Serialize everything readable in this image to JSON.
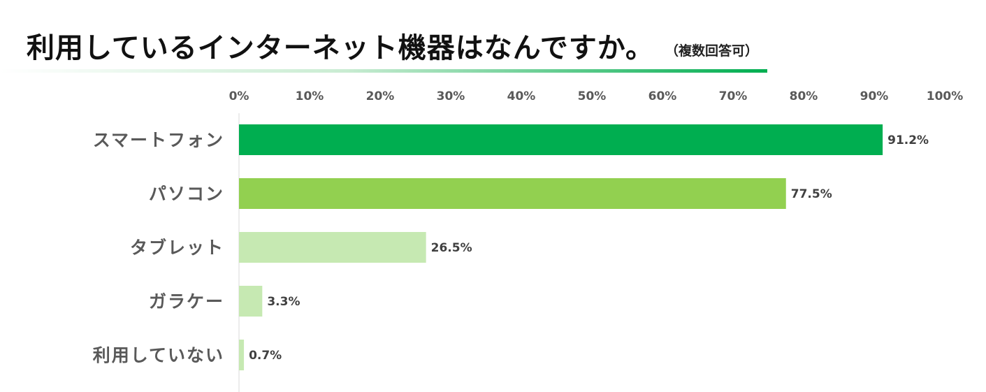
{
  "header": {
    "title": "利用しているインターネット機器はなんですか。",
    "subtitle": "（複数回答可）"
  },
  "colors": {
    "dark_green": "#00ae50",
    "mid_green": "#92d050",
    "light_green": "#c6e9b2",
    "axis_text": "#595959",
    "label_text": "#595959",
    "value_text": "#404040"
  },
  "chart_data": {
    "type": "bar",
    "orientation": "horizontal",
    "title": "利用しているインターネット機器はなんですか。",
    "subtitle": "（複数回答可）",
    "categories": [
      "スマートフォン",
      "パソコン",
      "タブレット",
      "ガラケー",
      "利用していない"
    ],
    "values": [
      91.2,
      77.5,
      26.5,
      3.3,
      0.7
    ],
    "value_labels": [
      "91.2%",
      "77.5%",
      "26.5%",
      "3.3%",
      "0.7%"
    ],
    "bar_colors": [
      "#00ae50",
      "#92d050",
      "#c6e9b2",
      "#c6e9b2",
      "#c6e9b2"
    ],
    "xlim": [
      0,
      100
    ],
    "x_ticks": [
      0,
      10,
      20,
      30,
      40,
      50,
      60,
      70,
      80,
      90,
      100
    ],
    "x_tick_labels": [
      "0%",
      "10%",
      "20%",
      "30%",
      "40%",
      "50%",
      "60%",
      "70%",
      "80%",
      "90%",
      "100%"
    ],
    "x_axis_position": "top",
    "grid": false,
    "legend": "none"
  }
}
